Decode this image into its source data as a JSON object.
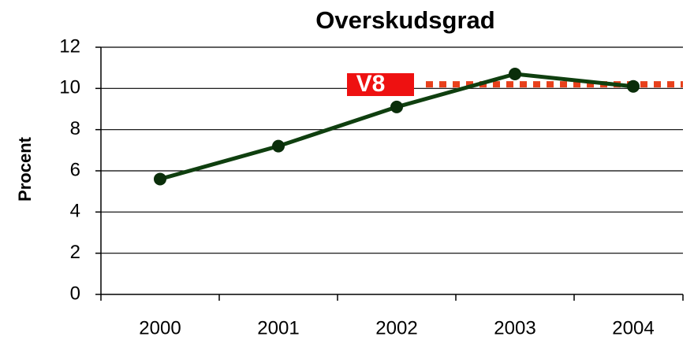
{
  "chart_data": {
    "type": "line",
    "title": "Overskudsgrad",
    "ylabel": "Procent",
    "categories": [
      "2000",
      "2001",
      "2002",
      "2003",
      "2004"
    ],
    "values": [
      5.6,
      7.2,
      9.1,
      10.7,
      10.1
    ],
    "color": "#0f3f0f",
    "ylim": [
      0,
      12
    ],
    "yticks": [
      0,
      2,
      4,
      6,
      8,
      10,
      12
    ],
    "grid": true,
    "reference_line": {
      "label": "V8",
      "value": 10.2,
      "color": "#e8401c",
      "label_color": "#ee1111"
    }
  }
}
